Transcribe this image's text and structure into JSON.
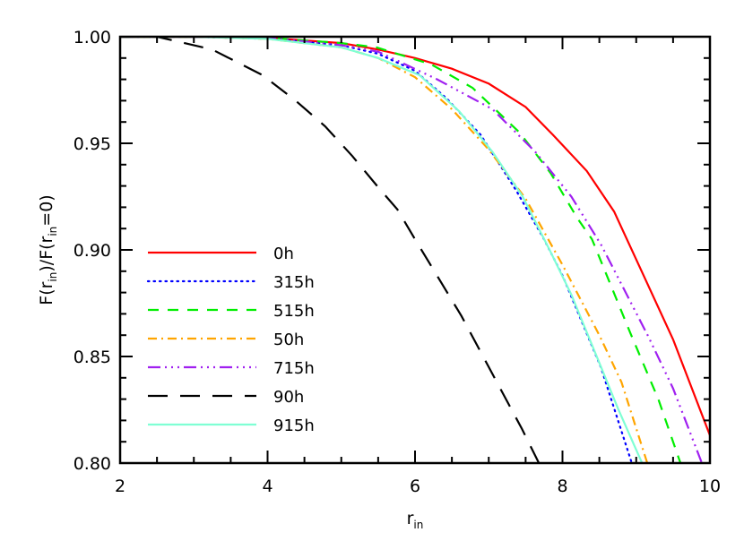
{
  "chart_data": {
    "type": "line",
    "title": "",
    "xlabel": "r_in",
    "ylabel": "F(r_in)/F(r_in=0)",
    "xlim": [
      2,
      10
    ],
    "ylim": [
      0.8,
      1.0
    ],
    "xticks": [
      2,
      4,
      6,
      8,
      10
    ],
    "xtick_labels": [
      "2",
      "4",
      "6",
      "8",
      "10"
    ],
    "yticks": [
      0.8,
      0.85,
      0.9,
      0.95,
      1.0
    ],
    "ytick_labels": [
      "0.80",
      "0.85",
      "0.90",
      "0.95",
      "1.00"
    ],
    "x_minor_step": 0.5,
    "y_minor_step": 0.01,
    "grid": false,
    "legend_placement": "lower-left",
    "series": [
      {
        "name": "0h",
        "color": "#ff0000",
        "style": "solid",
        "x": [
          2,
          3,
          4,
          5,
          5.5,
          6,
          6.5,
          7,
          7.5,
          7.87,
          8.33,
          8.7,
          9.1,
          9.5,
          10
        ],
        "y": [
          1.0,
          1.0,
          0.9995,
          0.997,
          0.994,
          0.99,
          0.985,
          0.978,
          0.967,
          0.954,
          0.937,
          0.918,
          0.888,
          0.858,
          0.813
        ]
      },
      {
        "name": "315h",
        "color": "#0000ff",
        "style": "dotted",
        "x": [
          2,
          3,
          4,
          5,
          5.5,
          6,
          6.43,
          6.89,
          7.37,
          7.75,
          8,
          8.52,
          8.94
        ],
        "y": [
          1.0,
          1.0,
          0.999,
          0.996,
          0.992,
          0.984,
          0.971,
          0.954,
          0.928,
          0.905,
          0.888,
          0.845,
          0.8
        ]
      },
      {
        "name": "515h",
        "color": "#00ee00",
        "style": "dashed",
        "x": [
          2,
          3,
          4,
          5,
          5.48,
          6.22,
          6.78,
          7.42,
          7.84,
          8.2,
          8.4,
          8.92,
          9.3,
          9.6
        ],
        "y": [
          1.0,
          1.0,
          0.9995,
          0.997,
          0.995,
          0.987,
          0.976,
          0.955,
          0.936,
          0.915,
          0.905,
          0.861,
          0.83,
          0.8
        ]
      },
      {
        "name": "50h",
        "color": "#ffa500",
        "style": "dashdot",
        "x": [
          2,
          3,
          4,
          5,
          5.5,
          6,
          6.5,
          7,
          7.5,
          8,
          8.5,
          8.8,
          9.15
        ],
        "y": [
          1.0,
          1.0,
          0.999,
          0.995,
          0.99,
          0.981,
          0.966,
          0.947,
          0.924,
          0.893,
          0.86,
          0.838,
          0.8
        ]
      },
      {
        "name": "715h",
        "color": "#a020f0",
        "style": "dashdotdotdot",
        "x": [
          2,
          3,
          4,
          5,
          5.5,
          6.3,
          7.05,
          7.63,
          8.12,
          8.53,
          9.17,
          9.5,
          9.89
        ],
        "y": [
          1.0,
          1.0,
          0.9995,
          0.996,
          0.993,
          0.98,
          0.966,
          0.946,
          0.925,
          0.902,
          0.859,
          0.835,
          0.8
        ]
      },
      {
        "name": "90h",
        "color": "#000000",
        "style": "longdash",
        "x": [
          2,
          2.5,
          3.25,
          3.93,
          4.38,
          4.78,
          5.15,
          5.51,
          5.76,
          6,
          6.63,
          7,
          7.45,
          7.68
        ],
        "y": [
          1.0,
          1.0,
          0.994,
          0.982,
          0.97,
          0.958,
          0.944,
          0.929,
          0.919,
          0.905,
          0.869,
          0.845,
          0.816,
          0.8
        ]
      },
      {
        "name": "915h",
        "color": "#7fffd4",
        "style": "solid",
        "x": [
          2,
          3,
          4,
          5,
          5.5,
          6.06,
          6.6,
          7.05,
          7.46,
          7.84,
          8.12,
          8.5,
          8.76,
          9.08
        ],
        "y": [
          1.0,
          1.0,
          0.999,
          0.995,
          0.99,
          0.982,
          0.965,
          0.946,
          0.925,
          0.899,
          0.879,
          0.847,
          0.825,
          0.8
        ]
      }
    ]
  }
}
